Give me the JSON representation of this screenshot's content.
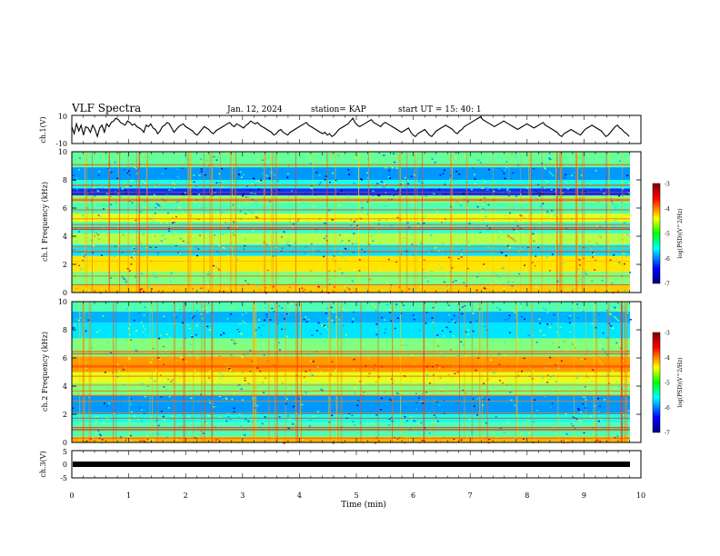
{
  "header": {
    "title": "VLF Spectra",
    "date": "Jan. 12, 2024",
    "station": "station= KAP",
    "start": "start  UT =   15: 40: 1"
  },
  "chart_data": [
    {
      "type": "line",
      "ylabel": "ch.1(V)",
      "ylim": [
        -10,
        10
      ],
      "yticks": [
        "10",
        "-10"
      ],
      "xlim": [
        0,
        10
      ],
      "grid": false,
      "description_series": "ch.1 waveform amplitude trace",
      "series": [
        {
          "values": [
            2,
            -3,
            4,
            -1,
            3,
            -4,
            2,
            1,
            -2,
            3,
            0,
            -5,
            1,
            3,
            -2,
            4,
            2,
            5,
            6,
            8,
            7,
            5,
            4,
            3,
            6,
            5,
            3,
            4,
            2,
            1,
            0,
            -2,
            3,
            2,
            4,
            1,
            0,
            -3,
            -1,
            2,
            3,
            5,
            4,
            1,
            -2,
            0,
            2,
            3,
            4,
            2,
            1,
            0,
            -1,
            -3,
            -4,
            -2,
            0,
            2,
            1,
            0,
            -2,
            -3,
            -1,
            0,
            1,
            2,
            3,
            4,
            5,
            3,
            2,
            4,
            3,
            2,
            1,
            3,
            4,
            6,
            5,
            4,
            5,
            3,
            2,
            1,
            0,
            -1,
            -2,
            -4,
            -3,
            -1,
            0,
            -2,
            -3,
            -4,
            -2,
            -1,
            0,
            1,
            2,
            3,
            4,
            5,
            3,
            2,
            1,
            0,
            -1,
            -2,
            -3,
            -2,
            -4,
            -3,
            -5,
            -4,
            -2,
            0,
            1,
            2,
            3,
            4,
            6,
            8,
            5,
            3,
            2,
            3,
            4,
            5,
            6,
            7,
            5,
            4,
            3,
            2,
            4,
            5,
            4,
            3,
            2,
            1,
            0,
            -1,
            -2,
            -1,
            0,
            1,
            -2,
            -4,
            -5,
            -3,
            -2,
            -1,
            0,
            -2,
            -4,
            -5,
            -3,
            -1,
            0,
            1,
            2,
            3,
            2,
            1,
            0,
            -2,
            -3,
            -1,
            0,
            2,
            3,
            4,
            5,
            6,
            7,
            8,
            9,
            7,
            6,
            5,
            4,
            3,
            2,
            3,
            4,
            5,
            6,
            5,
            4,
            3,
            2,
            1,
            0,
            1,
            2,
            3,
            4,
            3,
            2,
            1,
            2,
            3,
            4,
            5,
            3,
            2,
            1,
            0,
            -1,
            -2,
            -4,
            -5,
            -3,
            -2,
            -1,
            0,
            -1,
            -2,
            -3,
            -4,
            -2,
            0,
            1,
            2,
            3,
            2,
            1,
            0,
            -1,
            -3,
            -5,
            -4,
            -2,
            0,
            2,
            3,
            1,
            0,
            -2,
            -3,
            -5
          ]
        }
      ]
    },
    {
      "type": "heatmap",
      "ylabel": "ch.1 Frequency (kHz)",
      "ylim": [
        0,
        10
      ],
      "yticks": [
        "0",
        "2",
        "4",
        "6",
        "8",
        "10"
      ],
      "xlim": [
        0,
        10
      ],
      "colorbar": {
        "label": "log(PSD)(V^2/Hz)",
        "range": [
          -7,
          -3
        ],
        "ticks": [
          "-3",
          "-4",
          "-5",
          "-6",
          "-7"
        ]
      },
      "bands_khz_log_psd": [
        {
          "from": 0,
          "to": 0.5,
          "value": -4.3
        },
        {
          "from": 0.5,
          "to": 1.5,
          "value": -5.0
        },
        {
          "from": 1.5,
          "to": 2.6,
          "value": -4.4
        },
        {
          "from": 2.6,
          "to": 3.4,
          "value": -5.6
        },
        {
          "from": 3.4,
          "to": 4.2,
          "value": -4.8
        },
        {
          "from": 4.2,
          "to": 5.0,
          "value": -5.3
        },
        {
          "from": 5.0,
          "to": 5.6,
          "value": -4.6
        },
        {
          "from": 5.6,
          "to": 6.4,
          "value": -5.2
        },
        {
          "from": 6.4,
          "to": 6.9,
          "value": -4.9
        },
        {
          "from": 6.9,
          "to": 7.4,
          "value": -6.3
        },
        {
          "from": 7.4,
          "to": 8.0,
          "value": -5.4
        },
        {
          "from": 8.0,
          "to": 8.9,
          "value": -5.9
        },
        {
          "from": 8.9,
          "to": 10.0,
          "value": -5.1
        }
      ]
    },
    {
      "type": "heatmap",
      "ylabel": "ch.2 Frequency (kHz)",
      "ylim": [
        0,
        10
      ],
      "yticks": [
        "0",
        "2",
        "4",
        "6",
        "8",
        "10"
      ],
      "xlim": [
        0,
        10
      ],
      "colorbar": {
        "label": "log(PSD)(V^2/Hz)",
        "range": [
          -7,
          -3
        ],
        "ticks": [
          "-3",
          "-4",
          "-5",
          "-6",
          "-7"
        ]
      },
      "bands_khz_log_psd": [
        {
          "from": 0,
          "to": 0.4,
          "value": -4.2
        },
        {
          "from": 0.4,
          "to": 1.4,
          "value": -5.2
        },
        {
          "from": 1.4,
          "to": 2.0,
          "value": -5.4
        },
        {
          "from": 2.0,
          "to": 3.3,
          "value": -5.9
        },
        {
          "from": 3.3,
          "to": 4.2,
          "value": -5.0
        },
        {
          "from": 4.2,
          "to": 5.0,
          "value": -4.6
        },
        {
          "from": 5.0,
          "to": 6.1,
          "value": -4.1
        },
        {
          "from": 6.1,
          "to": 7.4,
          "value": -5.0
        },
        {
          "from": 7.4,
          "to": 8.5,
          "value": -5.6
        },
        {
          "from": 8.5,
          "to": 9.3,
          "value": -5.8
        },
        {
          "from": 9.3,
          "to": 10.0,
          "value": -5.2
        }
      ]
    },
    {
      "type": "line",
      "ylabel": "ch.3(V)",
      "ylim": [
        -5,
        5
      ],
      "yticks": [
        "5",
        "0",
        "-5"
      ],
      "xlim": [
        0,
        10
      ],
      "xlabel": "Time (min)",
      "xticks": [
        "0",
        "1",
        "2",
        "3",
        "4",
        "5",
        "6",
        "7",
        "8",
        "9",
        "10"
      ],
      "series": [
        {
          "values": [
            0,
            0
          ]
        }
      ]
    }
  ],
  "colors": {
    "axis": "#000000",
    "trace": "#000000"
  }
}
